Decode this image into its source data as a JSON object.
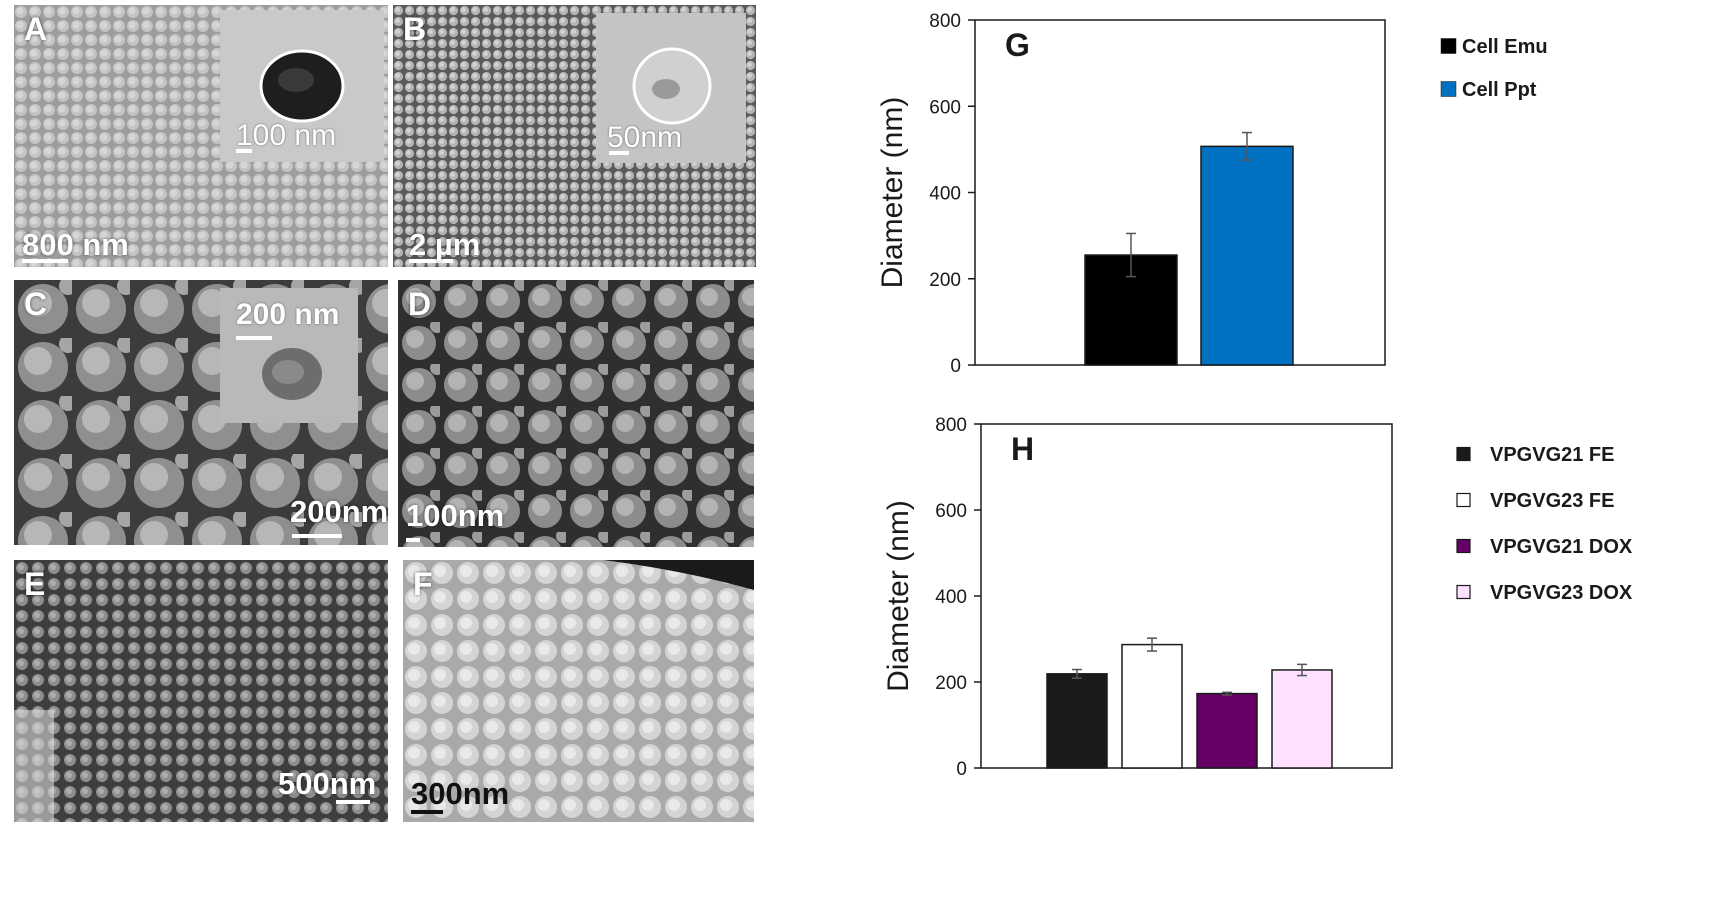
{
  "panels": {
    "A": {
      "label": "A",
      "scale": "800 nm",
      "inset_scale": "100 nm"
    },
    "B": {
      "label": "B",
      "scale": "2 µm",
      "inset_scale": "50nm"
    },
    "C": {
      "label": "C",
      "scale": "200nm",
      "inset_scale": "200 nm"
    },
    "D": {
      "label": "D",
      "scale": "100nm"
    },
    "E": {
      "label": "E",
      "scale": "500nm"
    },
    "F": {
      "label": "F",
      "scale": "300nm"
    }
  },
  "colors": {
    "sem_light": "#b9b9b9",
    "sem_dark": "#4a4a4a",
    "tem_bg": "#c8c8c8"
  },
  "chart_data": [
    {
      "type": "bar",
      "panel_label": "G",
      "ylabel": "Diameter (nm)",
      "ylim": [
        0,
        800
      ],
      "yticks": [
        0,
        200,
        400,
        600,
        800
      ],
      "grid": false,
      "legend_position": "right",
      "series": [
        {
          "name": "Cell Emu",
          "value": 255,
          "error": 50,
          "color": "#000000"
        },
        {
          "name": "Cell Ppt",
          "value": 507,
          "error": 32,
          "color": "#0070c0"
        }
      ]
    },
    {
      "type": "bar",
      "panel_label": "H",
      "ylabel": "Diameter (nm)",
      "ylim": [
        0,
        800
      ],
      "yticks": [
        0,
        200,
        400,
        600,
        800
      ],
      "grid": false,
      "legend_position": "right",
      "series": [
        {
          "name": "VPGVG21 FE",
          "value": 219,
          "error": 10,
          "color": "#1a1a1a"
        },
        {
          "name": "VPGVG23 FE",
          "value": 287,
          "error": 15,
          "color": "#ffffff"
        },
        {
          "name": "VPGVG21 DOX",
          "value": 173,
          "error": 3,
          "color": "#660066"
        },
        {
          "name": "VPGVG23 DOX",
          "value": 228,
          "error": 13,
          "color": "#ffe1ff"
        }
      ]
    }
  ]
}
